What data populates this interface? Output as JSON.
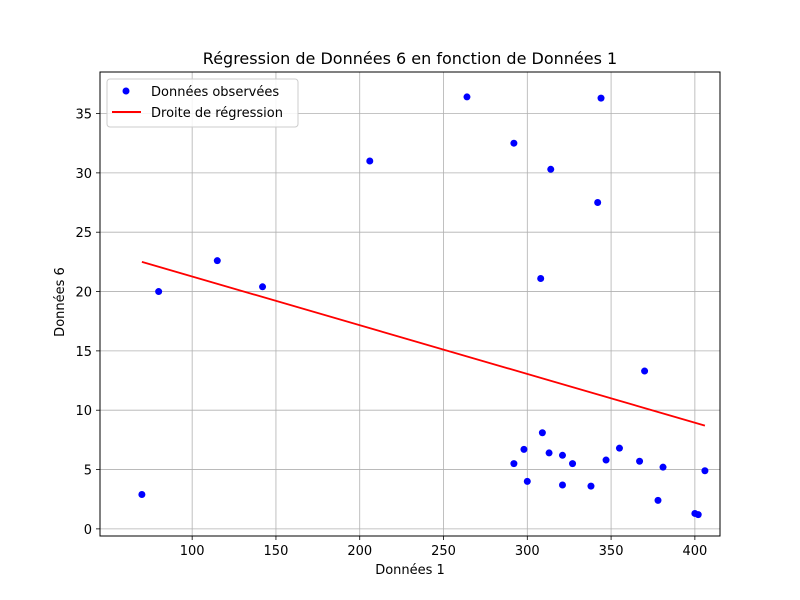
{
  "chart_data": {
    "type": "scatter",
    "title": "Régression de Données 6 en fonction de Données 1",
    "xlabel": "Données 1",
    "ylabel": "Données 6",
    "xlim": [
      45,
      415
    ],
    "ylim": [
      -0.6,
      38.5
    ],
    "xticks": [
      100,
      150,
      200,
      250,
      300,
      350,
      400
    ],
    "yticks": [
      0,
      5,
      10,
      15,
      20,
      25,
      30,
      35
    ],
    "grid": true,
    "legend_position": "top-left",
    "series": [
      {
        "name": "Données observées",
        "kind": "scatter",
        "color": "#0000ff",
        "points": [
          [
            70,
            2.9
          ],
          [
            80,
            20.0
          ],
          [
            115,
            22.6
          ],
          [
            142,
            20.4
          ],
          [
            206,
            31.0
          ],
          [
            264,
            36.4
          ],
          [
            292,
            32.5
          ],
          [
            292,
            5.5
          ],
          [
            298,
            6.7
          ],
          [
            300,
            4.0
          ],
          [
            308,
            21.1
          ],
          [
            309,
            8.1
          ],
          [
            313,
            6.4
          ],
          [
            314,
            30.3
          ],
          [
            321,
            6.2
          ],
          [
            321,
            3.7
          ],
          [
            327,
            5.5
          ],
          [
            338,
            3.6
          ],
          [
            342,
            27.5
          ],
          [
            344,
            36.3
          ],
          [
            347,
            5.8
          ],
          [
            355,
            6.8
          ],
          [
            367,
            5.7
          ],
          [
            370,
            13.3
          ],
          [
            378,
            2.4
          ],
          [
            381,
            5.2
          ],
          [
            400,
            1.3
          ],
          [
            402,
            1.2
          ],
          [
            406,
            4.9
          ]
        ]
      },
      {
        "name": "Droite de régression",
        "kind": "line",
        "color": "#ff0000",
        "points": [
          [
            70,
            22.5
          ],
          [
            406,
            8.7
          ]
        ]
      }
    ]
  }
}
